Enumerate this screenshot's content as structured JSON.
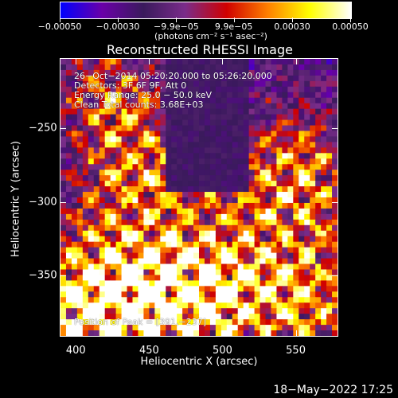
{
  "chart_data": {
    "type": "heatmap",
    "title": "Reconstructed RHESSI Image",
    "xlabel": "Heliocentric X (arcsec)",
    "ylabel": "Heliocentric Y (arcsec)",
    "xlim": [
      389,
      579
    ],
    "ylim": [
      -392,
      -202
    ],
    "x_ticks": [
      400,
      450,
      500,
      550
    ],
    "x_tick_labels": [
      "400",
      "450",
      "500",
      "550"
    ],
    "y_ticks": [
      -250,
      -300,
      -350
    ],
    "y_tick_labels": [
      "−250",
      "−300",
      "−350"
    ],
    "colorbar": {
      "range": [
        -0.0005,
        0.0005
      ],
      "ticks": [
        -0.0005,
        -0.0003,
        -9.9e-05,
        9.9e-05,
        0.0003,
        0.0005
      ],
      "tick_labels": [
        "−0.00050",
        "−0.00030",
        "−9.9e−05",
        "9.9e−05",
        "0.00030",
        "0.00050"
      ],
      "units": "(photons cm⁻² s⁻¹ asec⁻²)",
      "colors": [
        "#0000ff",
        "#6a00a8",
        "#3a1a5c",
        "#7a2c8a",
        "#d00000",
        "#ff8000",
        "#ffff00",
        "#ffffff"
      ]
    },
    "info_lines": [
      "26−Oct−2014 05:20:20.000 to 05:26:20.000",
      "Detectors: 3F 6F 9F, Att 0",
      "Energy Range: 25.0 − 50.0 keV",
      "Clean      Total counts: 3.68E+03"
    ],
    "peak_label": "Position of Peak = [391,−237]",
    "peak": [
      391,
      -237
    ],
    "grid": false
  },
  "footer": {
    "datestamp": "18−May−2022 17:25"
  }
}
